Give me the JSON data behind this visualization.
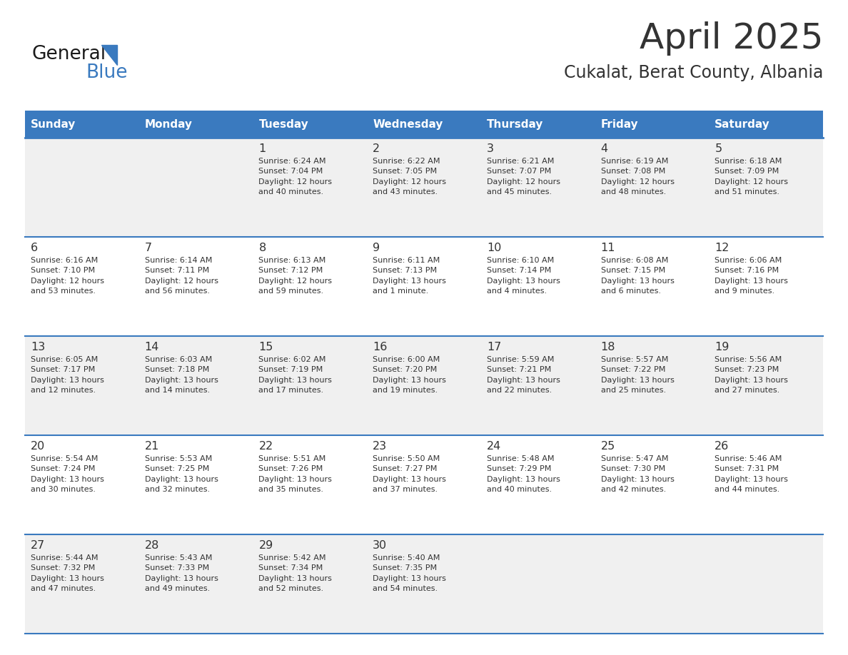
{
  "title": "April 2025",
  "subtitle": "Cukalat, Berat County, Albania",
  "header_color": "#3a7abf",
  "header_text_color": "#ffffff",
  "days_of_week": [
    "Sunday",
    "Monday",
    "Tuesday",
    "Wednesday",
    "Thursday",
    "Friday",
    "Saturday"
  ],
  "row_colors": [
    "#f0f0f0",
    "#ffffff"
  ],
  "divider_color": "#3a7abf",
  "text_color": "#333333",
  "title_color": "#333333",
  "bg_color": "#ffffff",
  "calendar_data": [
    [
      {
        "day": "",
        "info": ""
      },
      {
        "day": "",
        "info": ""
      },
      {
        "day": "1",
        "info": "Sunrise: 6:24 AM\nSunset: 7:04 PM\nDaylight: 12 hours\nand 40 minutes."
      },
      {
        "day": "2",
        "info": "Sunrise: 6:22 AM\nSunset: 7:05 PM\nDaylight: 12 hours\nand 43 minutes."
      },
      {
        "day": "3",
        "info": "Sunrise: 6:21 AM\nSunset: 7:07 PM\nDaylight: 12 hours\nand 45 minutes."
      },
      {
        "day": "4",
        "info": "Sunrise: 6:19 AM\nSunset: 7:08 PM\nDaylight: 12 hours\nand 48 minutes."
      },
      {
        "day": "5",
        "info": "Sunrise: 6:18 AM\nSunset: 7:09 PM\nDaylight: 12 hours\nand 51 minutes."
      }
    ],
    [
      {
        "day": "6",
        "info": "Sunrise: 6:16 AM\nSunset: 7:10 PM\nDaylight: 12 hours\nand 53 minutes."
      },
      {
        "day": "7",
        "info": "Sunrise: 6:14 AM\nSunset: 7:11 PM\nDaylight: 12 hours\nand 56 minutes."
      },
      {
        "day": "8",
        "info": "Sunrise: 6:13 AM\nSunset: 7:12 PM\nDaylight: 12 hours\nand 59 minutes."
      },
      {
        "day": "9",
        "info": "Sunrise: 6:11 AM\nSunset: 7:13 PM\nDaylight: 13 hours\nand 1 minute."
      },
      {
        "day": "10",
        "info": "Sunrise: 6:10 AM\nSunset: 7:14 PM\nDaylight: 13 hours\nand 4 minutes."
      },
      {
        "day": "11",
        "info": "Sunrise: 6:08 AM\nSunset: 7:15 PM\nDaylight: 13 hours\nand 6 minutes."
      },
      {
        "day": "12",
        "info": "Sunrise: 6:06 AM\nSunset: 7:16 PM\nDaylight: 13 hours\nand 9 minutes."
      }
    ],
    [
      {
        "day": "13",
        "info": "Sunrise: 6:05 AM\nSunset: 7:17 PM\nDaylight: 13 hours\nand 12 minutes."
      },
      {
        "day": "14",
        "info": "Sunrise: 6:03 AM\nSunset: 7:18 PM\nDaylight: 13 hours\nand 14 minutes."
      },
      {
        "day": "15",
        "info": "Sunrise: 6:02 AM\nSunset: 7:19 PM\nDaylight: 13 hours\nand 17 minutes."
      },
      {
        "day": "16",
        "info": "Sunrise: 6:00 AM\nSunset: 7:20 PM\nDaylight: 13 hours\nand 19 minutes."
      },
      {
        "day": "17",
        "info": "Sunrise: 5:59 AM\nSunset: 7:21 PM\nDaylight: 13 hours\nand 22 minutes."
      },
      {
        "day": "18",
        "info": "Sunrise: 5:57 AM\nSunset: 7:22 PM\nDaylight: 13 hours\nand 25 minutes."
      },
      {
        "day": "19",
        "info": "Sunrise: 5:56 AM\nSunset: 7:23 PM\nDaylight: 13 hours\nand 27 minutes."
      }
    ],
    [
      {
        "day": "20",
        "info": "Sunrise: 5:54 AM\nSunset: 7:24 PM\nDaylight: 13 hours\nand 30 minutes."
      },
      {
        "day": "21",
        "info": "Sunrise: 5:53 AM\nSunset: 7:25 PM\nDaylight: 13 hours\nand 32 minutes."
      },
      {
        "day": "22",
        "info": "Sunrise: 5:51 AM\nSunset: 7:26 PM\nDaylight: 13 hours\nand 35 minutes."
      },
      {
        "day": "23",
        "info": "Sunrise: 5:50 AM\nSunset: 7:27 PM\nDaylight: 13 hours\nand 37 minutes."
      },
      {
        "day": "24",
        "info": "Sunrise: 5:48 AM\nSunset: 7:29 PM\nDaylight: 13 hours\nand 40 minutes."
      },
      {
        "day": "25",
        "info": "Sunrise: 5:47 AM\nSunset: 7:30 PM\nDaylight: 13 hours\nand 42 minutes."
      },
      {
        "day": "26",
        "info": "Sunrise: 5:46 AM\nSunset: 7:31 PM\nDaylight: 13 hours\nand 44 minutes."
      }
    ],
    [
      {
        "day": "27",
        "info": "Sunrise: 5:44 AM\nSunset: 7:32 PM\nDaylight: 13 hours\nand 47 minutes."
      },
      {
        "day": "28",
        "info": "Sunrise: 5:43 AM\nSunset: 7:33 PM\nDaylight: 13 hours\nand 49 minutes."
      },
      {
        "day": "29",
        "info": "Sunrise: 5:42 AM\nSunset: 7:34 PM\nDaylight: 13 hours\nand 52 minutes."
      },
      {
        "day": "30",
        "info": "Sunrise: 5:40 AM\nSunset: 7:35 PM\nDaylight: 13 hours\nand 54 minutes."
      },
      {
        "day": "",
        "info": ""
      },
      {
        "day": "",
        "info": ""
      },
      {
        "day": "",
        "info": ""
      }
    ]
  ]
}
